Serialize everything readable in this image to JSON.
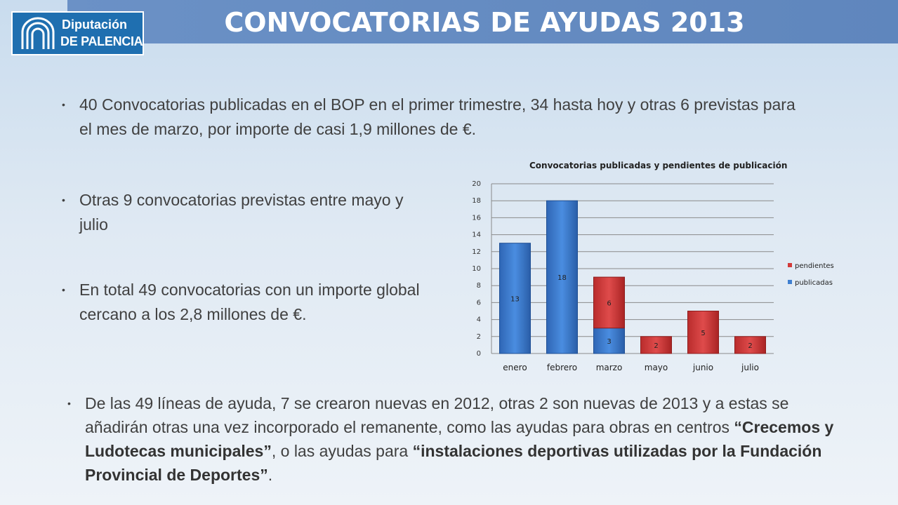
{
  "header": {
    "title": "CONVOCATORIAS DE AYUDAS 2013",
    "logo_line1": "Diputación",
    "logo_line2": "DE PALENCIA"
  },
  "bullets": {
    "b1": "40 Convocatorias publicadas en el BOP en el primer trimestre, 34 hasta hoy y otras 6 previstas para el mes de marzo, por importe de casi 1,9 millones de €.",
    "b2": "Otras 9 convocatorias previstas entre mayo y julio",
    "b3": "En total 49 convocatorias con un importe global cercano a los 2,8 millones de €.",
    "b4": {
      "part1": "De las 49 líneas de ayuda, 7 se crearon nuevas en 2012, otras 2 son nuevas de 2013 y a estas se añadirán otras una vez incorporado el remanente, como las ayudas para obras en centros ",
      "bold1": "“Crecemos y Ludotecas municipales”",
      "part2": ", o las ayudas para ",
      "bold2": "“instalaciones deportivas utilizadas por la Fundación Provincial de Deportes”",
      "part3": "."
    }
  },
  "chart_data": {
    "type": "bar",
    "stacked": true,
    "title": "Convocatorias publicadas y pendientes de publicación",
    "categories": [
      "enero",
      "febrero",
      "marzo",
      "mayo",
      "junio",
      "julio"
    ],
    "series": [
      {
        "name": "publicadas",
        "values": [
          13,
          18,
          3,
          0,
          0,
          0
        ],
        "color": "#3f7fd0"
      },
      {
        "name": "pendientes",
        "values": [
          0,
          0,
          6,
          2,
          5,
          2
        ],
        "color": "#d23a3a"
      }
    ],
    "data_labels": {
      "publicadas": [
        "13",
        "18",
        "3",
        "",
        "",
        ""
      ],
      "pendientes": [
        "",
        "",
        "6",
        "2",
        "5",
        "2"
      ]
    },
    "y_ticks": [
      "0",
      "2",
      "4",
      "6",
      "8",
      "10",
      "12",
      "14",
      "16",
      "18",
      "20"
    ],
    "ylim": [
      0,
      20
    ],
    "grid": true,
    "legend_position": "right",
    "legend": [
      "pendientes",
      "publicadas"
    ]
  }
}
